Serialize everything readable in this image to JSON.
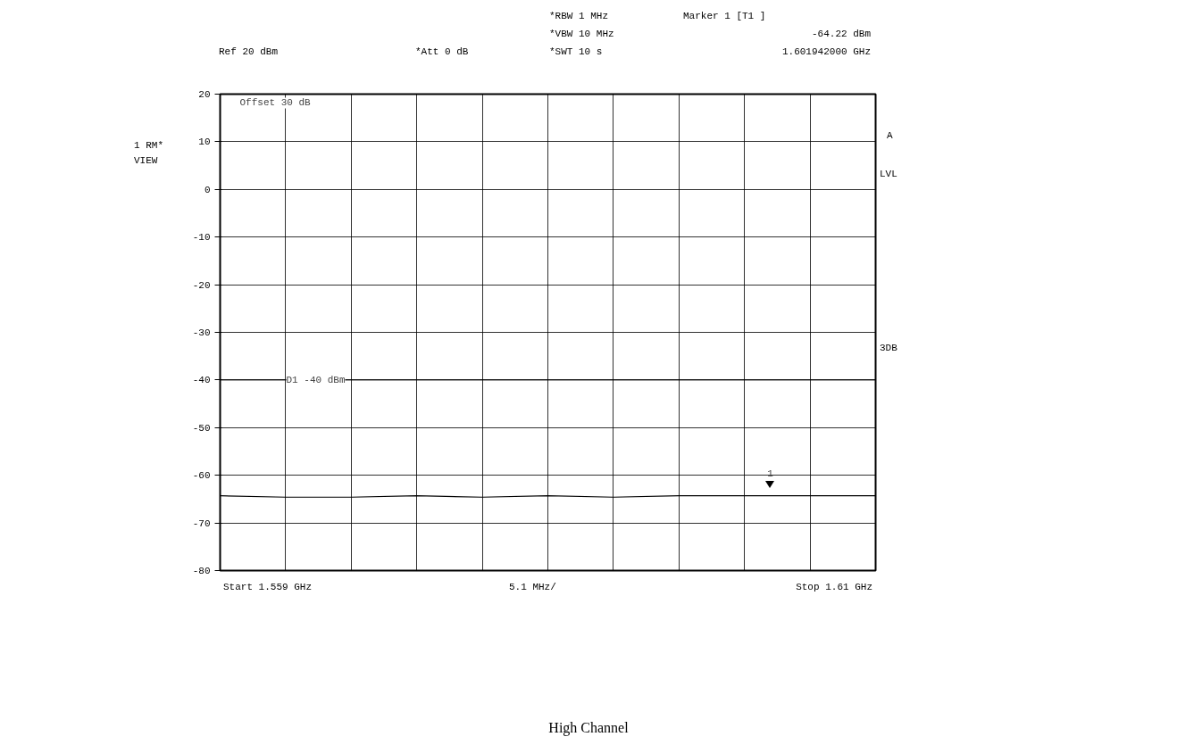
{
  "chart_data": {
    "type": "line",
    "title": "High Channel",
    "categories": [
      null,
      null,
      null,
      null,
      null,
      null,
      null,
      null,
      null,
      null,
      null
    ],
    "series": [
      {
        "color": "#000000",
        "values": [
          -64.3,
          -64.6,
          -64.6,
          -64.3,
          -64.6,
          -64.3,
          -64.6,
          -64.3,
          -64.3,
          -64.3,
          -64.3
        ]
      }
    ],
    "ylim": [
      -80,
      20
    ],
    "yticks": [
      -80,
      -70,
      -60,
      -50,
      -40,
      -30,
      -20,
      -10,
      0,
      10,
      20
    ],
    "grid": true,
    "marker": "none",
    "line_style": "solid",
    "ref_lines": [
      {
        "axis": "y",
        "value": -40,
        "label": "D1 -40 dBm",
        "color": "#000000"
      }
    ],
    "annotations": [
      "Ref 20 dBm",
      "*Att 0 dB",
      "*RBW 1 MHz",
      "*VBW 10 MHz",
      "*SWT 10 s",
      "Marker 1 [T1 ]",
      "-64.22 dBm",
      "1.601942000 GHz",
      "Offset 30 dB",
      "1 RM*",
      "VIEW",
      "A",
      "LVL",
      "3DB",
      "Start 1.559 GHz",
      "5.1 MHz/",
      "Stop 1.61 GHz",
      "1"
    ]
  }
}
